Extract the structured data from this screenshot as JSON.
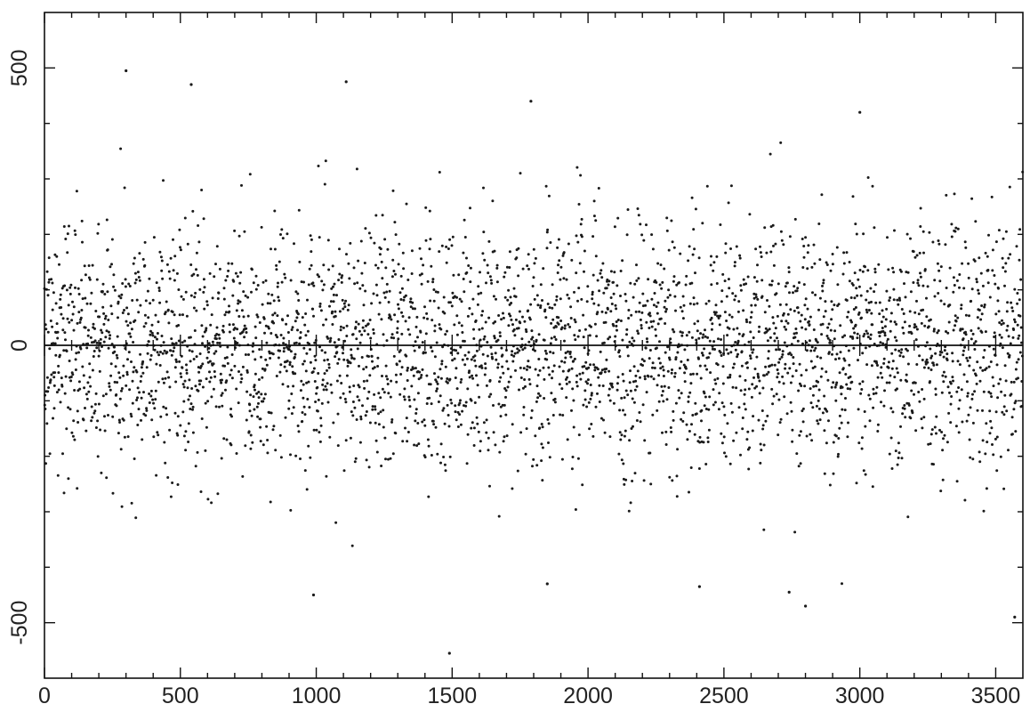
{
  "chart_data": {
    "type": "scatter",
    "title": "",
    "xlabel": "",
    "ylabel": "",
    "xlim": [
      0,
      3600
    ],
    "ylim": [
      -600,
      600
    ],
    "grid": false,
    "reference_line": {
      "y": 0
    },
    "x_ticks": [
      0,
      500,
      1000,
      1500,
      2000,
      2500,
      3000,
      3500
    ],
    "x_tick_labels": [
      "0",
      "500",
      "1000",
      "1500",
      "2000",
      "2500",
      "3000",
      "3500"
    ],
    "y_ticks": [
      -500,
      0,
      500
    ],
    "y_tick_labels": [
      "-500",
      "0",
      "500"
    ],
    "points_summary": {
      "n_points": 3600,
      "x_start": 0,
      "x_step": 1,
      "center": 0,
      "typical_spread": 110,
      "notable_points": [
        {
          "x": 300,
          "y": 495
        },
        {
          "x": 1110,
          "y": 475
        },
        {
          "x": 540,
          "y": 470
        },
        {
          "x": 1790,
          "y": 440
        },
        {
          "x": 3000,
          "y": 420
        },
        {
          "x": 1490,
          "y": -555
        },
        {
          "x": 2800,
          "y": -470
        },
        {
          "x": 990,
          "y": -450
        },
        {
          "x": 2740,
          "y": -445
        },
        {
          "x": 2410,
          "y": -435
        },
        {
          "x": 1850,
          "y": -430
        },
        {
          "x": 3570,
          "y": -490
        }
      ]
    }
  }
}
